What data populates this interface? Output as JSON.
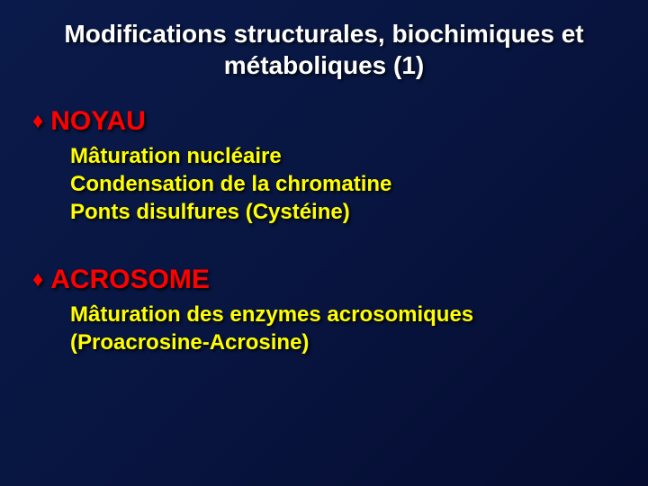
{
  "background": {
    "gradient_start": "#0a1a4a",
    "gradient_mid": "#081540",
    "gradient_end": "#050c30"
  },
  "typography": {
    "font_family": "Comic Sans MS",
    "title_color": "#ffffff",
    "title_fontsize": 28,
    "heading_color": "#ff0000",
    "heading_fontsize": 30,
    "body_color": "#ffff00",
    "body_fontsize": 24,
    "shadow_color": "#000000"
  },
  "title": {
    "line1": "Modifications structurales, biochimiques et",
    "line2": "métaboliques (1)"
  },
  "sections": [
    {
      "heading": "NOYAU",
      "bullet_symbol": "♦",
      "items": [
        "Mâturation nucléaire",
        "Condensation de la chromatine",
        "Ponts disulfures (Cystéine)"
      ]
    },
    {
      "heading": "ACROSOME",
      "bullet_symbol": "♦",
      "items": [
        "Mâturation des enzymes acrosomiques",
        "(Proacrosine-Acrosine)"
      ]
    }
  ]
}
